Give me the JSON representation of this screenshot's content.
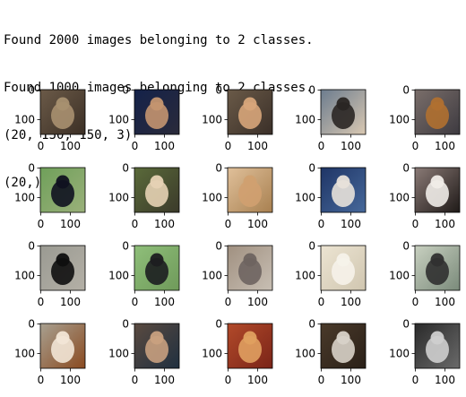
{
  "output_lines": [
    "Found 2000 images belonging to 2 classes.",
    "Found 1000 images belonging to 2 classes.",
    "(20, 150, 150, 3)",
    "(20,)"
  ],
  "figure": {
    "rows": 4,
    "cols": 5,
    "x_tick_labels": [
      "0",
      "100"
    ],
    "y_tick_labels": [
      "0",
      "100"
    ],
    "cells": [
      {
        "subject": "dog",
        "colors": [
          "#6b5a48",
          "#a89070",
          "#3b2f25"
        ]
      },
      {
        "subject": "dog",
        "colors": [
          "#14224a",
          "#c49570",
          "#2a2a3a"
        ]
      },
      {
        "subject": "cat",
        "colors": [
          "#6a5a48",
          "#d7a57a",
          "#3a2f28"
        ]
      },
      {
        "subject": "cat",
        "colors": [
          "#6c7c8e",
          "#2a2624",
          "#d9c8b2"
        ]
      },
      {
        "subject": "dog",
        "colors": [
          "#7a6e6a",
          "#b07030",
          "#3d3a40"
        ]
      },
      {
        "subject": "dog",
        "colors": [
          "#6fa05a",
          "#101220",
          "#9ab07a"
        ]
      },
      {
        "subject": "dog",
        "colors": [
          "#5a6a3a",
          "#e6d2b4",
          "#3b3a2a"
        ]
      },
      {
        "subject": "cat",
        "colors": [
          "#e0c09a",
          "#d0a070",
          "#a88050"
        ]
      },
      {
        "subject": "cat",
        "colors": [
          "#1f3566",
          "#e8e2da",
          "#46689a"
        ]
      },
      {
        "subject": "cat",
        "colors": [
          "#8a7a76",
          "#f0ece8",
          "#1f1a18"
        ]
      },
      {
        "subject": "cat",
        "colors": [
          "#9a9a92",
          "#0f0f0f",
          "#b4b0a6"
        ]
      },
      {
        "subject": "dog",
        "colors": [
          "#8fbf7a",
          "#1c1e20",
          "#6f9a5a"
        ]
      },
      {
        "subject": "cat",
        "colors": [
          "#a09080",
          "#6e6460",
          "#c8bfb4"
        ]
      },
      {
        "subject": "cat",
        "colors": [
          "#ece4d2",
          "#f6f2ea",
          "#d0c6b0"
        ]
      },
      {
        "subject": "cat",
        "colors": [
          "#c8d0c0",
          "#303030",
          "#7a8a7a"
        ]
      },
      {
        "subject": "dog",
        "colors": [
          "#a8a090",
          "#f2e6d6",
          "#8a4a20"
        ]
      },
      {
        "subject": "cat",
        "colors": [
          "#5a4a40",
          "#c8a080",
          "#203040"
        ]
      },
      {
        "subject": "cat",
        "colors": [
          "#b24a2a",
          "#e0a060",
          "#7a2418"
        ]
      },
      {
        "subject": "cat",
        "colors": [
          "#4a3a2a",
          "#d8d2c8",
          "#2a2018"
        ]
      },
      {
        "subject": "cat",
        "colors": [
          "#2a2a2a",
          "#cfcfcf",
          "#6a6a6a"
        ]
      }
    ]
  }
}
